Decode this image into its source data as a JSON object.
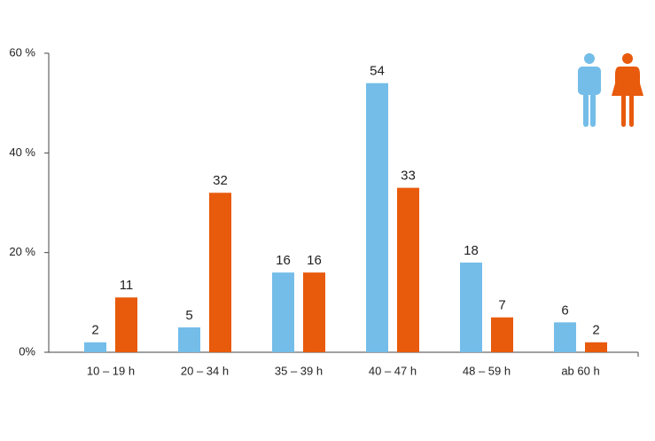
{
  "chart_data": {
    "type": "bar",
    "categories": [
      "10 – 19 h",
      "20 – 34 h",
      "35 – 39 h",
      "40 – 47 h",
      "48 – 59 h",
      "ab 60 h"
    ],
    "series": [
      {
        "color": "#74bde9",
        "values": [
          2,
          5,
          16,
          54,
          18,
          6
        ]
      },
      {
        "color": "#e85a0c",
        "values": [
          11,
          32,
          16,
          33,
          7,
          2
        ]
      }
    ],
    "ylim": [
      0,
      60
    ],
    "yticks": [
      {
        "value": 0,
        "label": "0%"
      },
      {
        "value": 20,
        "label": "20 %"
      },
      {
        "value": 40,
        "label": "40 %"
      },
      {
        "value": 60,
        "label": "60 %"
      }
    ]
  }
}
